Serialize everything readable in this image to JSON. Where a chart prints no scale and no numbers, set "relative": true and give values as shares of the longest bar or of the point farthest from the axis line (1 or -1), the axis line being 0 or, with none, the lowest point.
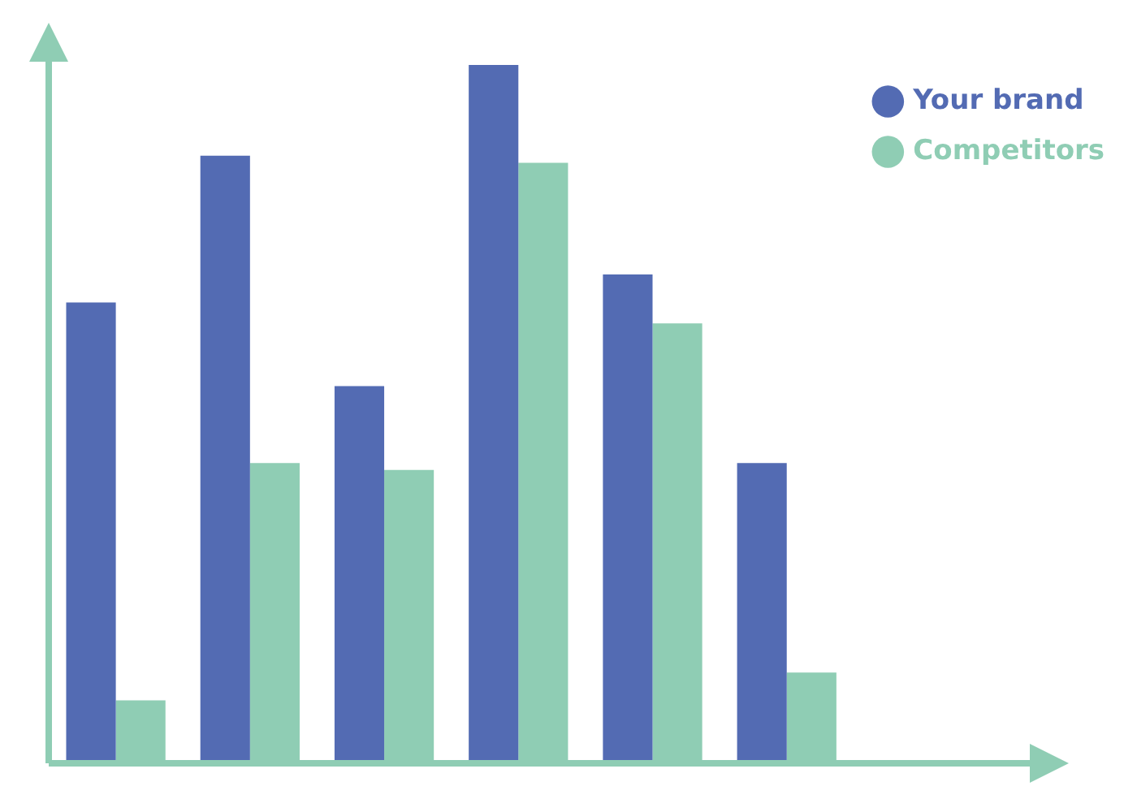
{
  "chart_data": {
    "type": "bar",
    "relative": true,
    "categories": [
      null,
      null,
      null,
      null,
      null,
      null
    ],
    "series": [
      {
        "name": "Your brand",
        "color": "#536bb3",
        "values": [
          0.66,
          0.87,
          0.54,
          1,
          0.7,
          0.43
        ]
      },
      {
        "name": "Competitors",
        "color": "#8fcdb4",
        "values": [
          0.09,
          0.43,
          0.42,
          0.86,
          0.63,
          0.13
        ]
      }
    ],
    "legend": "top right",
    "grid": false
  }
}
